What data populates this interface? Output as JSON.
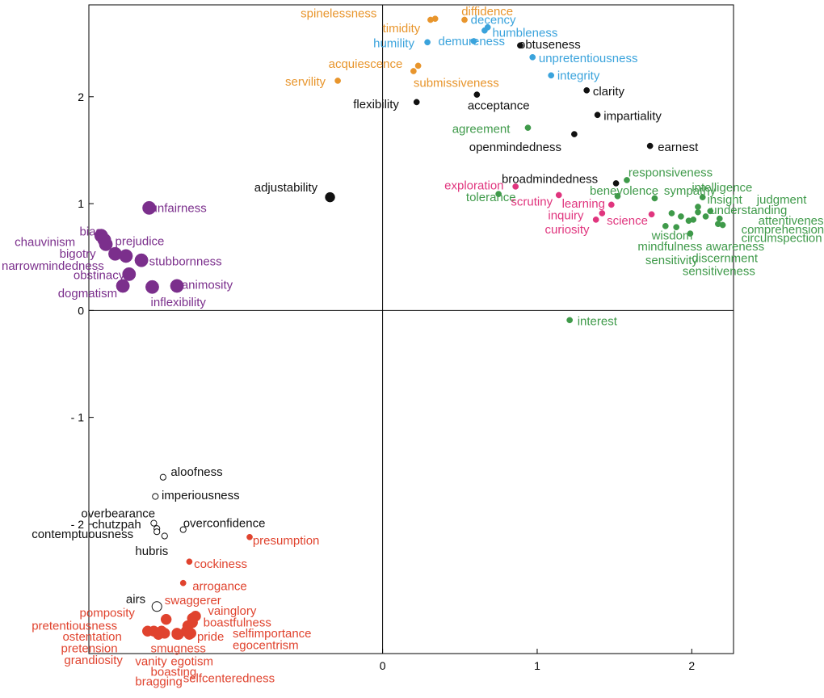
{
  "chart_data": {
    "type": "scatter",
    "title": "",
    "xlabel": "",
    "ylabel": "",
    "xlim": [
      -1.9,
      2.27
    ],
    "ylim": [
      -3.21,
      2.86
    ],
    "xticks": [
      {
        "v": 0,
        "label": "0"
      },
      {
        "v": 1,
        "label": "1"
      },
      {
        "v": 2,
        "label": "2"
      }
    ],
    "yticks": [
      {
        "v": 2,
        "label": "2"
      },
      {
        "v": 1,
        "label": "1"
      },
      {
        "v": 0,
        "label": "0"
      },
      {
        "v": -1,
        "label": "- 1"
      },
      {
        "v": -2,
        "label": "- 2"
      }
    ],
    "colors": {
      "orange": "#e8952c",
      "blue": "#3aa3dc",
      "black": "#111111",
      "green": "#3f9a4a",
      "pink": "#e0357e",
      "purple": "#7b2f8c",
      "red": "#e0432e",
      "hollow": "#111111"
    },
    "series": [
      {
        "name": "orange",
        "points": [
          {
            "label": "spinelessness",
            "x": 0.31,
            "y": 2.72,
            "lx": -0.53,
            "ly": 2.78
          },
          {
            "label": "diffidence",
            "x": 0.53,
            "y": 2.72,
            "lx": 0.51,
            "ly": 2.8
          },
          {
            "label": "timidity",
            "x": 0.34,
            "y": 2.73,
            "lx": 0.0,
            "ly": 2.64
          },
          {
            "label": "acquiescence",
            "x": 0.23,
            "y": 2.29,
            "lx": -0.35,
            "ly": 2.31
          },
          {
            "label": "submissiveness",
            "x": 0.2,
            "y": 2.24,
            "lx": 0.2,
            "ly": 2.13
          },
          {
            "label": "servility",
            "x": -0.29,
            "y": 2.15,
            "lx": -0.63,
            "ly": 2.14
          }
        ]
      },
      {
        "name": "blue",
        "points": [
          {
            "label": "decency",
            "x": 0.68,
            "y": 2.65,
            "lx": 0.57,
            "ly": 2.72
          },
          {
            "label": "humbleness",
            "x": 0.66,
            "y": 2.62,
            "lx": 0.71,
            "ly": 2.6
          },
          {
            "label": "humility",
            "x": 0.29,
            "y": 2.51,
            "lx": -0.06,
            "ly": 2.5
          },
          {
            "label": "demureness",
            "x": 0.59,
            "y": 2.52,
            "lx": 0.36,
            "ly": 2.52
          },
          {
            "label": "unpretentiousness",
            "x": 0.97,
            "y": 2.37,
            "lx": 1.01,
            "ly": 2.36
          },
          {
            "label": "integrity",
            "x": 1.09,
            "y": 2.2,
            "lx": 1.13,
            "ly": 2.2
          }
        ]
      },
      {
        "name": "black",
        "points": [
          {
            "label": "obtuseness",
            "x": 0.89,
            "y": 2.48,
            "lx": 0.88,
            "ly": 2.49
          },
          {
            "label": "clarity",
            "x": 1.32,
            "y": 2.06,
            "lx": 1.36,
            "ly": 2.05
          },
          {
            "label": "flexibility",
            "x": 0.22,
            "y": 1.95,
            "lx": -0.19,
            "ly": 1.93
          },
          {
            "label": "acceptance",
            "x": 0.61,
            "y": 2.02,
            "lx": 0.55,
            "ly": 1.92
          },
          {
            "label": "impartiality",
            "x": 1.39,
            "y": 1.83,
            "lx": 1.43,
            "ly": 1.82
          },
          {
            "label": "openmindedness",
            "x": 1.24,
            "y": 1.65,
            "lx": 0.56,
            "ly": 1.53
          },
          {
            "label": "earnest",
            "x": 1.73,
            "y": 1.54,
            "lx": 1.78,
            "ly": 1.53
          },
          {
            "label": "broadmindedness",
            "x": 1.51,
            "y": 1.19,
            "lx": 0.77,
            "ly": 1.23
          },
          {
            "label": "adjustability",
            "x": -0.34,
            "y": 1.06,
            "lx": -0.83,
            "ly": 1.15,
            "big": true
          }
        ]
      },
      {
        "name": "green",
        "points": [
          {
            "label": "agreement",
            "x": 0.94,
            "y": 1.71,
            "lx": 0.45,
            "ly": 1.7
          },
          {
            "label": "responsiveness",
            "x": 1.58,
            "y": 1.22,
            "lx": 1.59,
            "ly": 1.29
          },
          {
            "label": "intelligence",
            "x": 2.07,
            "y": 1.06,
            "lx": 2.0,
            "ly": 1.15
          },
          {
            "label": "insight",
            "x": 2.04,
            "y": 0.97,
            "lx": 2.1,
            "ly": 1.04
          },
          {
            "label": "judgment",
            "x": 2.12,
            "y": 0.93,
            "lx": 2.42,
            "ly": 1.04
          },
          {
            "label": "understanding",
            "x": 2.04,
            "y": 0.92,
            "lx": 2.12,
            "ly": 0.94
          },
          {
            "label": "attentiveness",
            "x": 2.18,
            "y": 0.86,
            "lx": 2.43,
            "ly": 0.84
          },
          {
            "label": "comprehension",
            "x": 2.2,
            "y": 0.8,
            "lx": 2.32,
            "ly": 0.76
          },
          {
            "label": "circumspection",
            "x": 2.17,
            "y": 0.81,
            "lx": 2.32,
            "ly": 0.68
          },
          {
            "label": "sympathy",
            "x": 1.76,
            "y": 1.05,
            "lx": 1.82,
            "ly": 1.12
          },
          {
            "label": "benevolence",
            "x": 1.52,
            "y": 1.07,
            "lx": 1.34,
            "ly": 1.12
          },
          {
            "label": "tolerance",
            "x": 0.75,
            "y": 1.09,
            "lx": 0.54,
            "ly": 1.06
          },
          {
            "label": "wisdom",
            "x": 1.87,
            "y": 0.91,
            "lx": 1.74,
            "ly": 0.7
          },
          {
            "label": "mindfulness",
            "x": 1.93,
            "y": 0.88,
            "lx": 1.65,
            "ly": 0.6
          },
          {
            "label": "sensitivity",
            "x": 1.83,
            "y": 0.79,
            "lx": 1.7,
            "ly": 0.47
          },
          {
            "label": "awareness",
            "x": 1.99,
            "y": 0.72,
            "lx": 2.09,
            "ly": 0.6
          },
          {
            "label": "discernment",
            "x": 1.9,
            "y": 0.78,
            "lx": 2.0,
            "ly": 0.49
          },
          {
            "label": "sensitiveness",
            "x": 1.98,
            "y": 0.84,
            "lx": 1.94,
            "ly": 0.37
          },
          {
            "label": "tilde-g1",
            "x": 2.01,
            "y": 0.85,
            "lx": null,
            "ly": null
          },
          {
            "label": "tilde-g2",
            "x": 2.09,
            "y": 0.88,
            "lx": null,
            "ly": null
          },
          {
            "label": "interest",
            "x": 1.21,
            "y": -0.09,
            "lx": 1.26,
            "ly": -0.1
          }
        ]
      },
      {
        "name": "pink",
        "points": [
          {
            "label": "exploration",
            "x": 0.86,
            "y": 1.16,
            "lx": 0.4,
            "ly": 1.17
          },
          {
            "label": "scrutiny",
            "x": 1.14,
            "y": 1.08,
            "lx": 0.83,
            "ly": 1.02
          },
          {
            "label": "learning",
            "x": 1.48,
            "y": 0.99,
            "lx": 1.16,
            "ly": 1.0
          },
          {
            "label": "inquiry",
            "x": 1.42,
            "y": 0.91,
            "lx": 1.07,
            "ly": 0.89
          },
          {
            "label": "science",
            "x": 1.38,
            "y": 0.85,
            "lx": 1.45,
            "ly": 0.84
          },
          {
            "label": "curiosity",
            "x": 1.74,
            "y": 0.9,
            "lx": 1.05,
            "ly": 0.76
          }
        ]
      },
      {
        "name": "purple",
        "points": [
          {
            "label": "unfairness",
            "x": -1.51,
            "y": 0.96,
            "lx": -1.5,
            "ly": 0.96
          },
          {
            "label": "bias",
            "x": -1.82,
            "y": 0.7,
            "lx": -1.96,
            "ly": 0.74
          },
          {
            "label": "chauvinism",
            "x": -1.8,
            "y": 0.66,
            "lx": -2.38,
            "ly": 0.64
          },
          {
            "label": "prejudice",
            "x": -1.79,
            "y": 0.62,
            "lx": -1.73,
            "ly": 0.65
          },
          {
            "label": "bigotry",
            "x": -1.73,
            "y": 0.53,
            "lx": -2.09,
            "ly": 0.53
          },
          {
            "label": "narrowmindedness",
            "x": -1.66,
            "y": 0.51,
            "lx": -2.49,
            "ly": 0.42
          },
          {
            "label": "stubbornness",
            "x": -1.56,
            "y": 0.47,
            "lx": -1.51,
            "ly": 0.46
          },
          {
            "label": "obstinacy",
            "x": -1.64,
            "y": 0.34,
            "lx": -2.0,
            "ly": 0.33
          },
          {
            "label": "dogmatism",
            "x": -1.68,
            "y": 0.23,
            "lx": -2.1,
            "ly": 0.16
          },
          {
            "label": "animosity",
            "x": -1.33,
            "y": 0.23,
            "lx": -1.3,
            "ly": 0.24
          },
          {
            "label": "inflexibility",
            "x": -1.49,
            "y": 0.22,
            "lx": -1.5,
            "ly": 0.08
          }
        ]
      },
      {
        "name": "hollow",
        "points": [
          {
            "label": "aloofness",
            "x": -1.42,
            "y": -1.56,
            "lx": -1.37,
            "ly": -1.51
          },
          {
            "label": "imperiousness",
            "x": -1.47,
            "y": -1.74,
            "lx": -1.43,
            "ly": -1.73
          },
          {
            "label": "overbearance",
            "x": -1.48,
            "y": -1.99,
            "lx": -1.95,
            "ly": -1.9
          },
          {
            "label": "chutzpah",
            "x": -1.46,
            "y": -2.04,
            "lx": -1.88,
            "ly": -2.0
          },
          {
            "label": "overconfidence",
            "x": -1.29,
            "y": -2.05,
            "lx": -1.29,
            "ly": -1.99
          },
          {
            "label": "contemptuousness",
            "x": -1.46,
            "y": -2.07,
            "lx": -2.27,
            "ly": -2.09
          },
          {
            "label": "hubris",
            "x": -1.41,
            "y": -2.11,
            "lx": -1.6,
            "ly": -2.25
          },
          {
            "label": "airs",
            "x": -1.46,
            "y": -2.77,
            "lx": -1.66,
            "ly": -2.7,
            "big": true
          }
        ]
      },
      {
        "name": "red",
        "points": [
          {
            "label": "presumption",
            "x": -0.86,
            "y": -2.12,
            "lx": -0.84,
            "ly": -2.15
          },
          {
            "label": "cockiness",
            "x": -1.25,
            "y": -2.35,
            "lx": -1.22,
            "ly": -2.37
          },
          {
            "label": "arrogance",
            "x": -1.29,
            "y": -2.55,
            "lx": -1.23,
            "ly": -2.58
          },
          {
            "label": "swaggerer",
            "x": -1.23,
            "y": -2.88,
            "lx": -1.41,
            "ly": -2.71
          },
          {
            "label": "vainglory",
            "x": -1.21,
            "y": -2.86,
            "lx": -1.13,
            "ly": -2.81
          },
          {
            "label": "pomposity",
            "x": -1.4,
            "y": -2.89,
            "lx": -1.96,
            "ly": -2.83
          },
          {
            "label": "boastfulness",
            "x": -1.23,
            "y": -2.92,
            "lx": -1.16,
            "ly": -2.92
          },
          {
            "label": "pretentiousness",
            "x": -1.43,
            "y": -3.0,
            "lx": -2.27,
            "ly": -2.95
          },
          {
            "label": "selfimportance",
            "x": -1.26,
            "y": -2.95,
            "lx": -0.97,
            "ly": -3.02
          },
          {
            "label": "ostentation",
            "x": -1.52,
            "y": -3.0,
            "lx": -2.07,
            "ly": -3.05
          },
          {
            "label": "pride",
            "x": -1.27,
            "y": -3.0,
            "lx": -1.2,
            "ly": -3.05
          },
          {
            "label": "egocentrism",
            "x": -1.24,
            "y": -3.02,
            "lx": -0.97,
            "ly": -3.13
          },
          {
            "label": "pretension",
            "x": -1.48,
            "y": -3.0,
            "lx": -2.08,
            "ly": -3.16
          },
          {
            "label": "smugness",
            "x": -1.32,
            "y": -3.03,
            "lx": -1.5,
            "ly": -3.16
          },
          {
            "label": "grandiosity",
            "x": -1.45,
            "y": -3.03,
            "lx": -2.06,
            "ly": -3.27
          },
          {
            "label": "vanity",
            "x": -1.41,
            "y": -3.02,
            "lx": -1.6,
            "ly": -3.28
          },
          {
            "label": "egotism",
            "x": -1.33,
            "y": -3.02,
            "lx": -1.37,
            "ly": -3.28
          },
          {
            "label": "boasting",
            "x": -1.33,
            "y": -3.03,
            "lx": -1.5,
            "ly": -3.38
          },
          {
            "label": "bragging",
            "x": -1.45,
            "y": -3.03,
            "lx": -1.6,
            "ly": -3.47
          },
          {
            "label": "selfcenteredness",
            "x": -1.25,
            "y": -3.03,
            "lx": -1.29,
            "ly": -3.44
          }
        ]
      }
    ]
  }
}
